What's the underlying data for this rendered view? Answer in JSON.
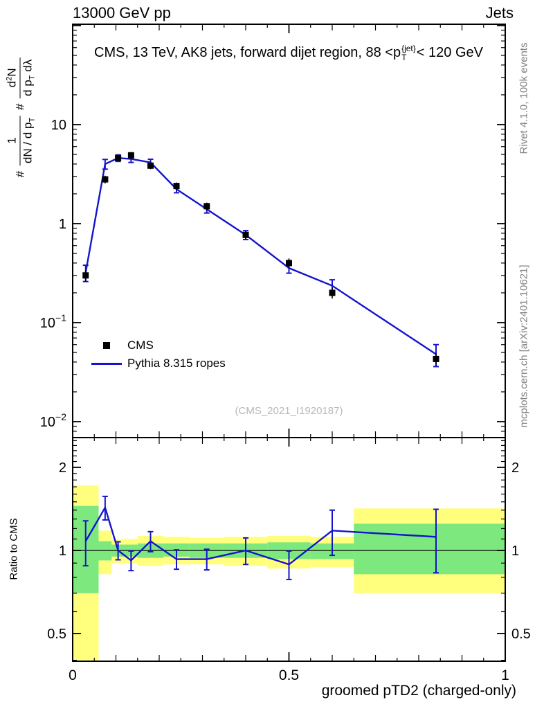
{
  "header": {
    "left": "13000 GeV pp",
    "right": "Jets"
  },
  "panel": {
    "title_segments": [
      {
        "t": "CMS, 13 TeV, AK8 jets, forward dijet region, 88 <p"
      },
      {
        "style": "supsub",
        "sup": "{jet}",
        "sub": "T"
      },
      {
        "t": "< 120 GeV"
      }
    ],
    "legend": [
      {
        "label": "CMS",
        "marker": "square",
        "color": "#000000"
      },
      {
        "label": "Pythia 8.315 ropes",
        "marker": "line",
        "color": "#1414cc"
      }
    ],
    "watermark": "(CMS_2021_I1920187)"
  },
  "side_labels": {
    "top_right": "Rivet 4.1.0,  100k events",
    "bottom_right": "mcplots.cern.ch [arXiv:2401.10621]"
  },
  "axes": {
    "x_title": "groomed pTD2 (charged-only)",
    "ratio_ylabel": "Ratio to CMS",
    "main_ylabel_parts": [
      {
        "t": "# "
      },
      {
        "style": "frac",
        "num": [
          {
            "t": "1"
          }
        ],
        "den": [
          {
            "t": "dN / d p"
          },
          {
            "t": "T",
            "style": "sub"
          }
        ]
      },
      {
        "t": " # "
      },
      {
        "style": "frac",
        "num": [
          {
            "t": "d"
          },
          {
            "t": "2",
            "style": "sup"
          },
          {
            "t": "N"
          }
        ],
        "den": [
          {
            "t": "d p"
          },
          {
            "t": "T",
            "style": "sub"
          },
          {
            "t": " dλ"
          }
        ]
      }
    ],
    "x_ticks": [
      {
        "v": 0,
        "label": "0"
      },
      {
        "v": 0.5,
        "label": "0.5"
      },
      {
        "v": 1,
        "label": "1"
      }
    ],
    "main_yticks": [
      {
        "v": 10,
        "base": "10",
        "exp": ""
      },
      {
        "v": 1,
        "base": "1",
        "exp": ""
      },
      {
        "v": 0.1,
        "base": "10",
        "exp": "−1"
      },
      {
        "v": 0.01,
        "base": "10",
        "exp": "−2"
      }
    ],
    "ratio_yticks": [
      {
        "v": 2,
        "label": "2"
      },
      {
        "v": 1,
        "label": "1"
      },
      {
        "v": 0.5,
        "label": "0.5"
      }
    ]
  },
  "colors": {
    "blue": "#1414cc",
    "yellow": "#ffff7d",
    "green": "#7de87d",
    "gray_text": "#808080",
    "watermark": "#b8b8b8"
  },
  "chart_data": {
    "type": "line",
    "title": "CMS, 13 TeV, AK8 jets, forward dijet region, 88 <pT^{jet}< 120 GeV",
    "xlabel": "groomed pTD2 (charged-only)",
    "ylabel": "# 1/(dN/dpT) # d2N/(dpT dlambda)",
    "xlim": [
      0,
      1
    ],
    "ylim_main_log": [
      0.007,
      100
    ],
    "ylim_ratio_log": [
      0.4,
      2.56
    ],
    "legend_position": "middle-left",
    "grid": false,
    "x": [
      0.03,
      0.075,
      0.105,
      0.135,
      0.18,
      0.24,
      0.31,
      0.4,
      0.5,
      0.6,
      0.84
    ],
    "series": [
      {
        "name": "CMS",
        "type": "scatter",
        "color": "#000000",
        "y": [
          0.3,
          2.8,
          4.6,
          4.9,
          3.85,
          2.4,
          1.5,
          0.77,
          0.4,
          0.2,
          0.043
        ],
        "yerr": [
          0.04,
          0.25,
          0.35,
          0.4,
          0.3,
          0.2,
          0.13,
          0.07,
          0.045,
          0.025,
          0.006
        ]
      },
      {
        "name": "Pythia 8.315 ropes",
        "type": "line",
        "color": "#1414cc",
        "y": [
          0.32,
          4.0,
          4.6,
          4.5,
          4.15,
          2.23,
          1.4,
          0.77,
          0.356,
          0.236,
          0.048
        ],
        "yerr": [
          0.06,
          0.45,
          0.35,
          0.35,
          0.32,
          0.18,
          0.12,
          0.08,
          0.04,
          0.035,
          0.012
        ]
      }
    ],
    "ratio": {
      "name": "Pythia 8.315 ropes / CMS",
      "color": "#1414cc",
      "y": [
        1.08,
        1.43,
        1.0,
        0.92,
        1.08,
        0.93,
        0.93,
        1.0,
        0.89,
        1.18,
        1.12
      ],
      "yerr": [
        0.2,
        0.14,
        0.075,
        0.075,
        0.09,
        0.075,
        0.08,
        0.11,
        0.105,
        0.22,
        0.29
      ]
    },
    "ratio_bands": {
      "bin_edges": [
        0,
        0.06,
        0.09,
        0.12,
        0.15,
        0.21,
        0.27,
        0.35,
        0.45,
        0.55,
        0.65,
        1.0
      ],
      "yellow": [
        [
          0.28,
          1.72
        ],
        [
          0.82,
          1.18
        ],
        [
          0.9,
          1.1
        ],
        [
          0.9,
          1.1
        ],
        [
          0.88,
          1.13
        ],
        [
          0.89,
          1.12
        ],
        [
          0.89,
          1.11
        ],
        [
          0.88,
          1.12
        ],
        [
          0.86,
          1.13
        ],
        [
          0.87,
          1.12
        ],
        [
          0.7,
          1.42
        ]
      ],
      "green": [
        [
          0.7,
          1.45
        ],
        [
          0.92,
          1.08
        ],
        [
          0.95,
          1.05
        ],
        [
          0.95,
          1.05
        ],
        [
          0.94,
          1.06
        ],
        [
          0.95,
          1.06
        ],
        [
          0.94,
          1.06
        ],
        [
          0.94,
          1.06
        ],
        [
          0.93,
          1.07
        ],
        [
          0.93,
          1.06
        ],
        [
          0.82,
          1.25
        ]
      ]
    }
  }
}
